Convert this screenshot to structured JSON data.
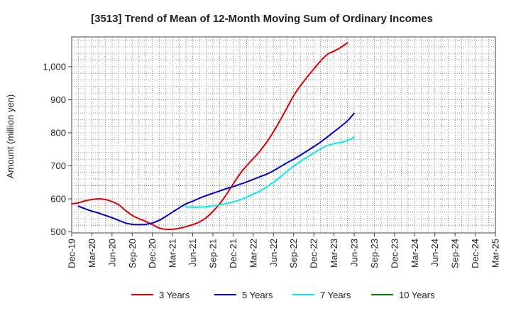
{
  "chart_data": {
    "type": "line",
    "title": "[3513]  Trend of Mean of 12-Month Moving Sum of Ordinary Incomes",
    "xlabel": "",
    "ylabel": "Amount (million yen)",
    "ylim": [
      497,
      1090
    ],
    "yticks": [
      500,
      600,
      700,
      800,
      900,
      1000
    ],
    "ytick_labels": [
      "500",
      "600",
      "700",
      "800",
      "900",
      "1,000"
    ],
    "x_tick_labels": [
      "Dec-19",
      "Mar-20",
      "Jun-20",
      "Sep-20",
      "Dec-20",
      "Mar-21",
      "Jun-21",
      "Sep-21",
      "Dec-21",
      "Mar-22",
      "Jun-22",
      "Sep-22",
      "Dec-22",
      "Mar-23",
      "Jun-23",
      "Sep-23",
      "Dec-23",
      "Mar-24",
      "Jun-24",
      "Sep-24",
      "Dec-24",
      "Mar-25"
    ],
    "grid": true,
    "legend_position": "bottom",
    "series": [
      {
        "name": "3 Years",
        "color": "#dd0000",
        "points": [
          [
            0,
            585
          ],
          [
            1,
            588
          ],
          [
            2,
            594
          ],
          [
            3,
            598
          ],
          [
            4,
            600
          ],
          [
            5,
            598
          ],
          [
            6,
            592
          ],
          [
            7,
            582
          ],
          [
            8,
            565
          ],
          [
            9,
            550
          ],
          [
            10,
            540
          ],
          [
            11,
            532
          ],
          [
            12,
            522
          ],
          [
            13,
            512
          ],
          [
            14,
            508
          ],
          [
            15,
            508
          ],
          [
            16,
            511
          ],
          [
            17,
            516
          ],
          [
            18,
            522
          ],
          [
            19,
            530
          ],
          [
            20,
            543
          ],
          [
            21,
            562
          ],
          [
            22,
            585
          ],
          [
            23,
            613
          ],
          [
            24,
            645
          ],
          [
            25,
            675
          ],
          [
            26,
            700
          ],
          [
            27,
            722
          ],
          [
            28,
            745
          ],
          [
            29,
            772
          ],
          [
            30,
            803
          ],
          [
            31,
            838
          ],
          [
            32,
            875
          ],
          [
            33,
            912
          ],
          [
            34,
            942
          ],
          [
            35,
            968
          ],
          [
            36,
            993
          ],
          [
            37,
            1017
          ],
          [
            38,
            1037
          ],
          [
            39,
            1047
          ],
          [
            40,
            1058
          ],
          [
            41,
            1072
          ]
        ]
      },
      {
        "name": "5 Years",
        "color": "#0000cc",
        "points": [
          [
            1,
            578
          ],
          [
            2,
            570
          ],
          [
            3,
            563
          ],
          [
            4,
            557
          ],
          [
            5,
            550
          ],
          [
            6,
            543
          ],
          [
            7,
            535
          ],
          [
            8,
            527
          ],
          [
            9,
            523
          ],
          [
            10,
            522
          ],
          [
            11,
            523
          ],
          [
            12,
            527
          ],
          [
            13,
            535
          ],
          [
            14,
            547
          ],
          [
            15,
            560
          ],
          [
            16,
            573
          ],
          [
            17,
            585
          ],
          [
            18,
            593
          ],
          [
            19,
            602
          ],
          [
            20,
            610
          ],
          [
            21,
            617
          ],
          [
            22,
            624
          ],
          [
            23,
            631
          ],
          [
            24,
            637
          ],
          [
            25,
            644
          ],
          [
            26,
            651
          ],
          [
            27,
            659
          ],
          [
            28,
            667
          ],
          [
            29,
            675
          ],
          [
            30,
            685
          ],
          [
            31,
            697
          ],
          [
            32,
            709
          ],
          [
            33,
            720
          ],
          [
            34,
            732
          ],
          [
            35,
            745
          ],
          [
            36,
            758
          ],
          [
            37,
            772
          ],
          [
            38,
            787
          ],
          [
            39,
            803
          ],
          [
            40,
            819
          ],
          [
            41,
            836
          ],
          [
            42,
            859
          ]
        ]
      },
      {
        "name": "7 Years",
        "color": "#00eeee",
        "points": [
          [
            17,
            576
          ],
          [
            18,
            575
          ],
          [
            19,
            575
          ],
          [
            20,
            576
          ],
          [
            21,
            579
          ],
          [
            22,
            582
          ],
          [
            23,
            586
          ],
          [
            24,
            591
          ],
          [
            25,
            597
          ],
          [
            26,
            605
          ],
          [
            27,
            614
          ],
          [
            28,
            624
          ],
          [
            29,
            636
          ],
          [
            30,
            650
          ],
          [
            31,
            666
          ],
          [
            32,
            683
          ],
          [
            33,
            699
          ],
          [
            34,
            713
          ],
          [
            35,
            726
          ],
          [
            36,
            739
          ],
          [
            37,
            751
          ],
          [
            38,
            761
          ],
          [
            39,
            767
          ],
          [
            40,
            771
          ],
          [
            41,
            776
          ],
          [
            42,
            787
          ]
        ]
      },
      {
        "name": "10 Years",
        "color": "#008000",
        "points": []
      }
    ]
  }
}
